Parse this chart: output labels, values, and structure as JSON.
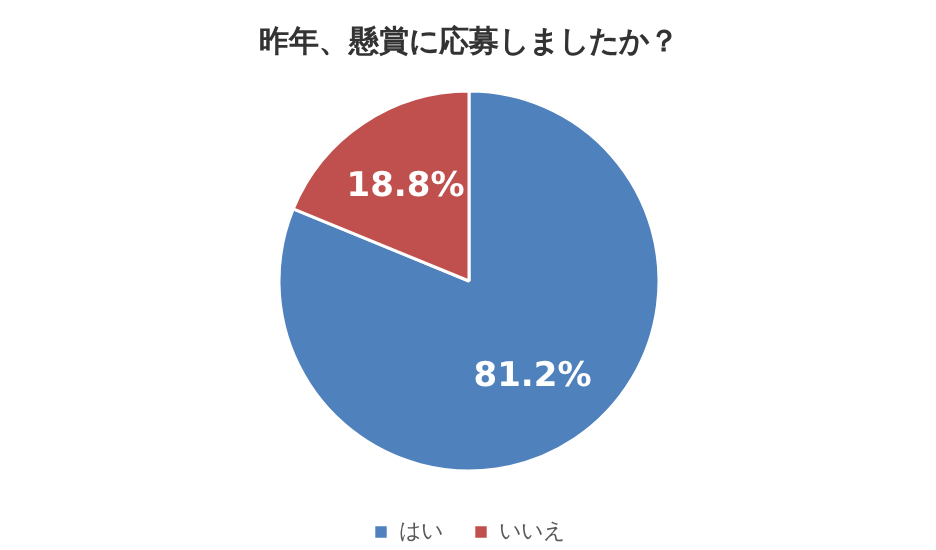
{
  "chart_data": {
    "type": "pie",
    "title": "昨年、懸賞に応募しましたか？",
    "categories": [
      "はい",
      "いいえ"
    ],
    "values": [
      81.2,
      18.8
    ],
    "colors": [
      "#4f81bd",
      "#c0504d"
    ],
    "value_labels": [
      "81.2%",
      "18.8%"
    ],
    "legend": "bottom"
  }
}
